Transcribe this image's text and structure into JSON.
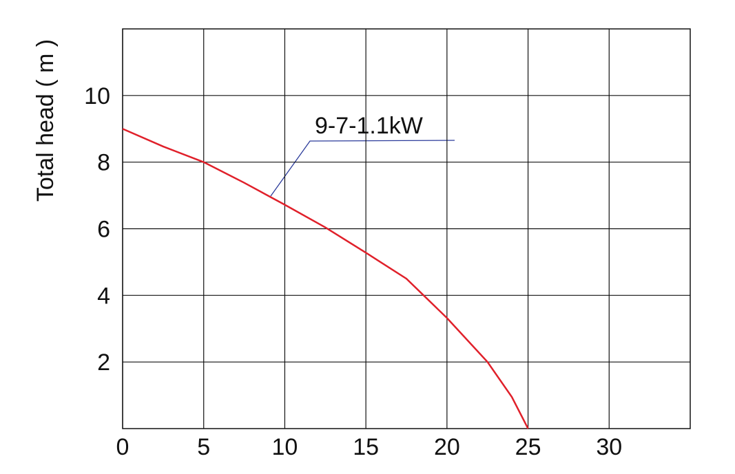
{
  "chart_data": {
    "type": "line",
    "y_label": "Total head ( m )",
    "x": [
      0,
      2.5,
      5,
      7.5,
      10,
      12.5,
      15,
      17.5,
      20,
      22.5,
      24,
      25
    ],
    "series": [
      {
        "name": "9-7-1.1kW",
        "color": "#e0202a",
        "values": [
          9,
          8.47,
          8.0,
          7.38,
          6.72,
          6.04,
          5.28,
          4.5,
          3.32,
          2.0,
          0.95,
          0
        ]
      }
    ],
    "xlim": [
      0,
      35
    ],
    "xticks": [
      0,
      5,
      10,
      15,
      20,
      25,
      30
    ],
    "ylim": [
      0,
      12
    ],
    "yticks": [
      2,
      4,
      6,
      8,
      10
    ],
    "grid": true
  }
}
